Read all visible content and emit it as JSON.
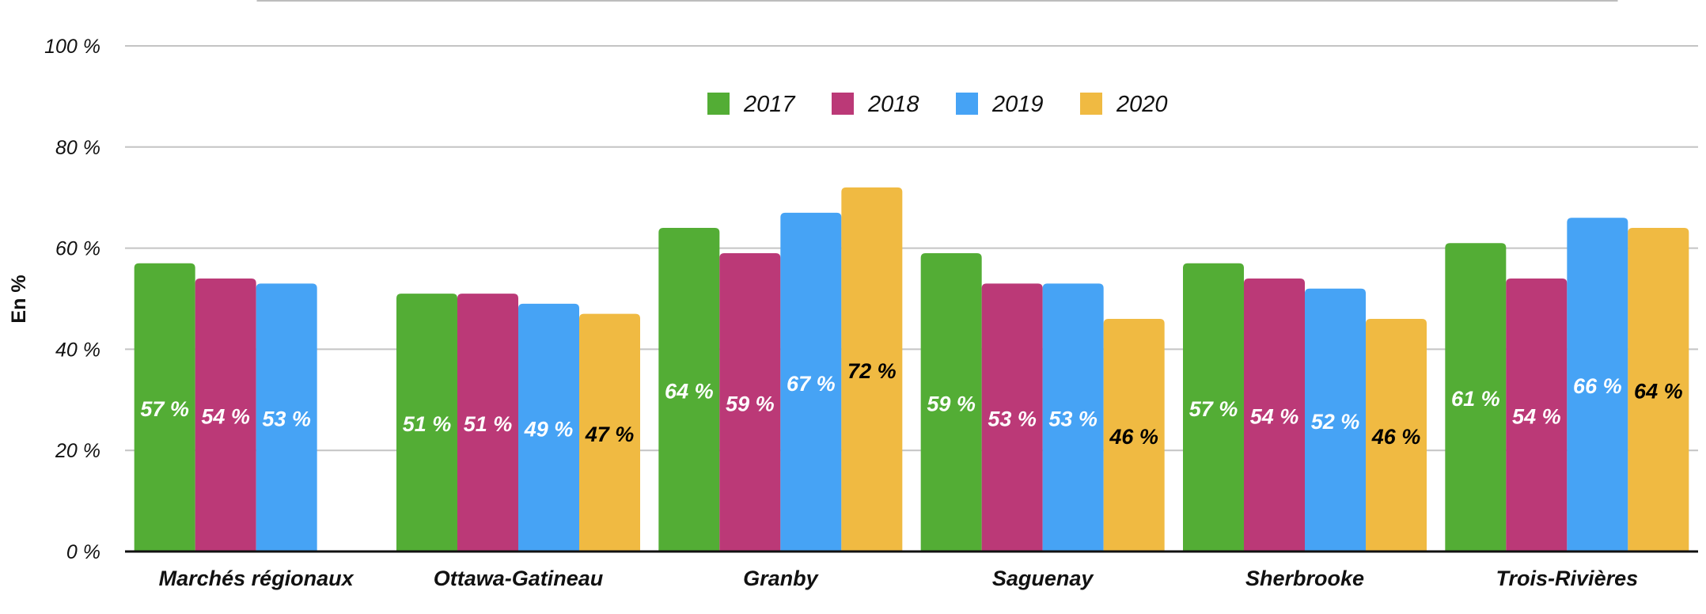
{
  "chart_data": {
    "type": "bar",
    "ylabel": "En %",
    "ylim": [
      0,
      100
    ],
    "yticks": [
      0,
      20,
      40,
      60,
      80,
      100
    ],
    "ytick_labels": [
      "0 %",
      "20 %",
      "40 %",
      "60 %",
      "80 %",
      "100 %"
    ],
    "grid": true,
    "legend_position": "top-center",
    "categories": [
      "Marchés régionaux",
      "Ottawa-Gatineau",
      "Granby",
      "Saguenay",
      "Sherbrooke",
      "Trois-Rivières"
    ],
    "series": [
      {
        "name": "2017",
        "color": "#53ad35",
        "label_color": "#ffffff",
        "values": [
          57,
          51,
          64,
          59,
          57,
          61
        ],
        "labels": [
          "57 %",
          "51 %",
          "64 %",
          "59 %",
          "57 %",
          "61 %"
        ]
      },
      {
        "name": "2018",
        "color": "#bb3977",
        "label_color": "#ffffff",
        "values": [
          54,
          51,
          59,
          53,
          54,
          54
        ],
        "labels": [
          "54 %",
          "51 %",
          "59 %",
          "53 %",
          "54 %",
          "54 %"
        ]
      },
      {
        "name": "2019",
        "color": "#46a3f5",
        "label_color": "#ffffff",
        "values": [
          53,
          49,
          67,
          53,
          52,
          66
        ],
        "labels": [
          "53 %",
          "49 %",
          "67 %",
          "53 %",
          "52 %",
          "66 %"
        ]
      },
      {
        "name": "2020",
        "color": "#f0ba42",
        "label_color": "#000000",
        "values": [
          null,
          47,
          72,
          46,
          46,
          64
        ],
        "labels": [
          null,
          "47 %",
          "72 %",
          "46 %",
          "46 %",
          "64 %"
        ]
      }
    ]
  }
}
